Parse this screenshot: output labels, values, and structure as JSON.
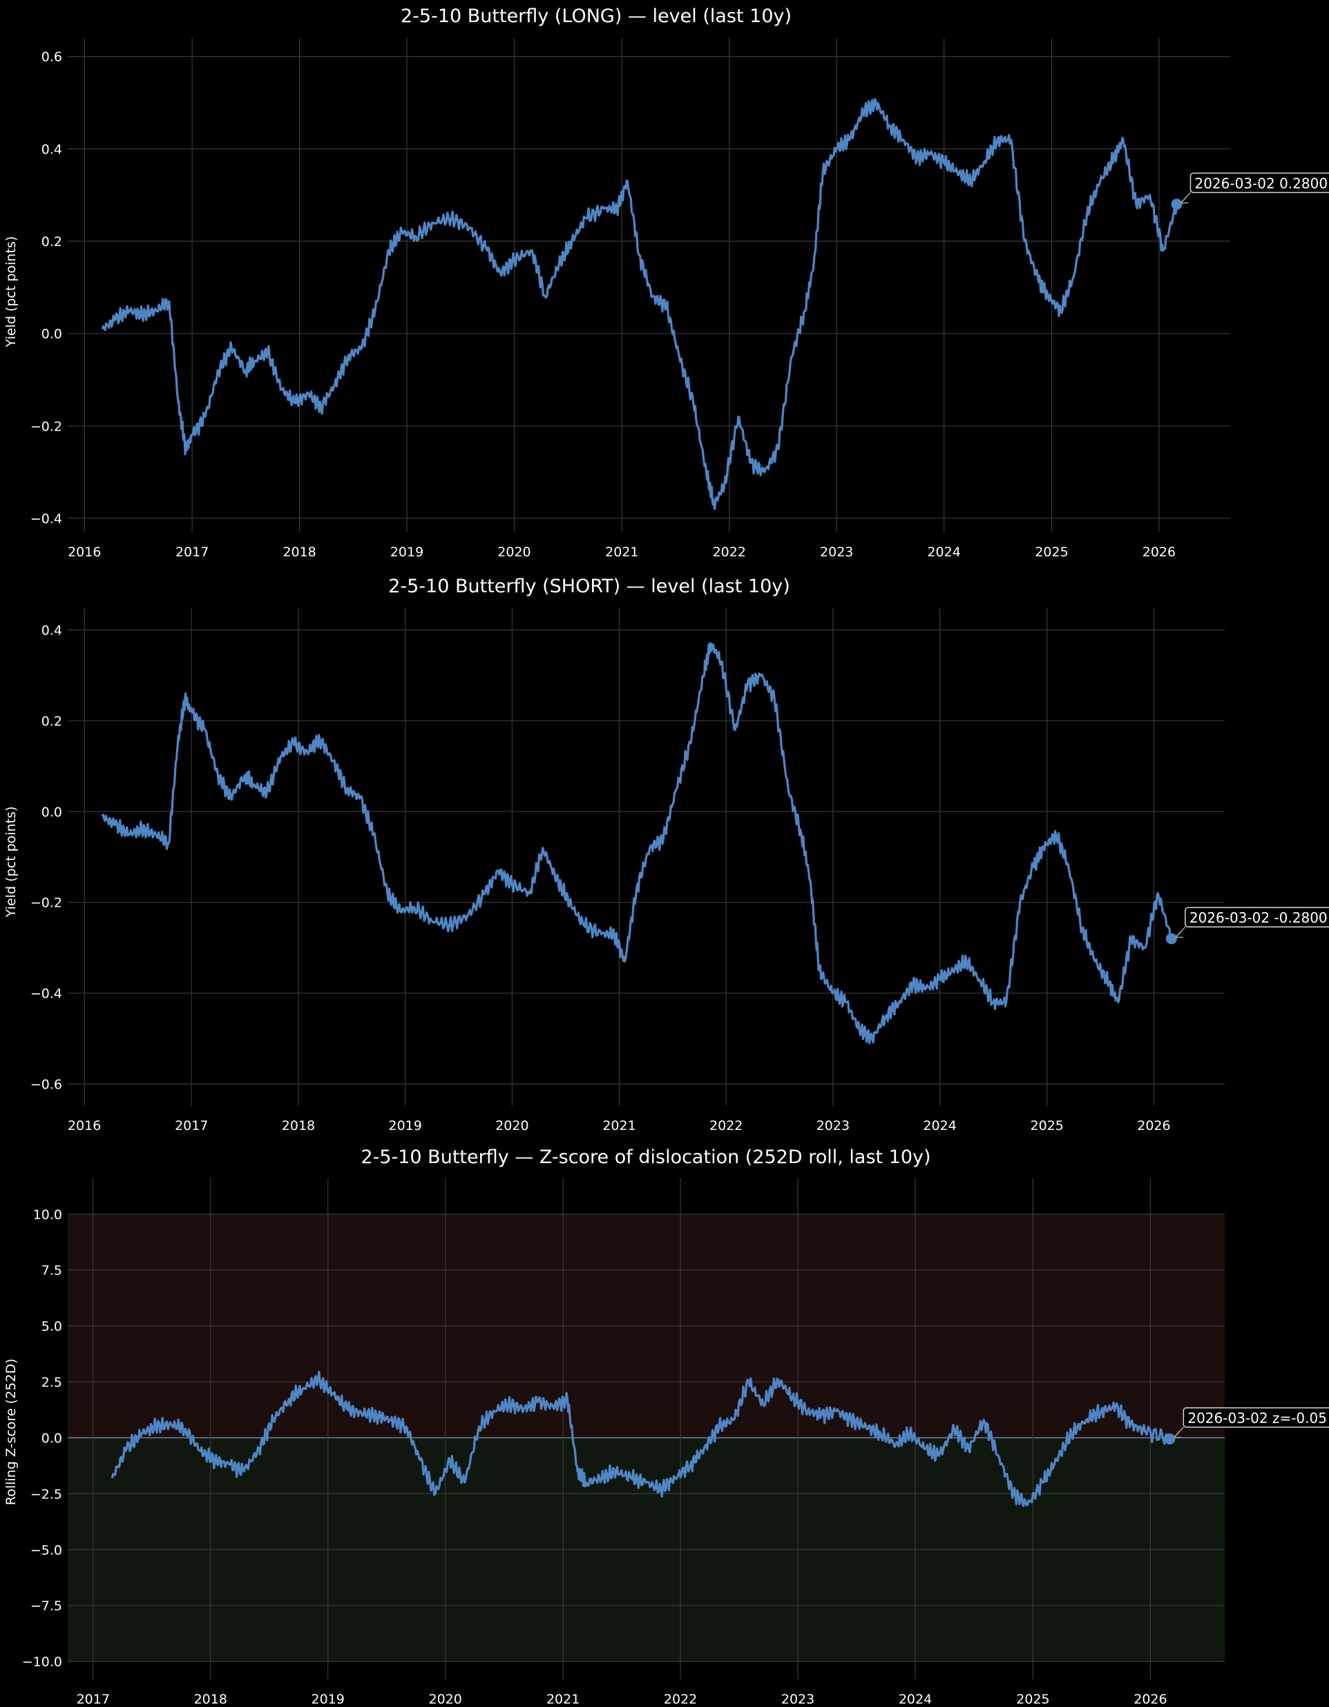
{
  "chart_data": [
    {
      "type": "line",
      "title": "2-5-10 Butterfly (LONG) — level (last 10y)",
      "xlabel": "",
      "ylabel": "Yield (pct points)",
      "xlim": [
        "2015-11-05",
        "2026-08-31"
      ],
      "ylim": [
        -0.43,
        0.64
      ],
      "xticks": [
        "2016",
        "2017",
        "2018",
        "2019",
        "2020",
        "2021",
        "2022",
        "2023",
        "2024",
        "2025",
        "2026"
      ],
      "yticks": [
        "−0.4",
        "−0.2",
        "0.0",
        "0.2",
        "0.4",
        "0.6"
      ],
      "ytick_values": [
        -0.4,
        -0.2,
        0.0,
        0.2,
        0.4,
        0.6
      ],
      "grid": true,
      "line_color": "#4f86c6",
      "series": [
        {
          "x": [
            "2016-03-02",
            "2016-04-15",
            "2016-06-01",
            "2016-07-15",
            "2016-09-01",
            "2016-10-15",
            "2016-11-15",
            "2016-12-10",
            "2017-01-01",
            "2017-02-15",
            "2017-04-01",
            "2017-05-15",
            "2017-07-01",
            "2017-08-01",
            "2017-09-15",
            "2017-11-01",
            "2017-12-15",
            "2018-02-01",
            "2018-03-15",
            "2018-05-01",
            "2018-06-15",
            "2018-08-01",
            "2018-09-15",
            "2018-11-01",
            "2018-12-15",
            "2019-02-01",
            "2019-04-01",
            "2019-06-01",
            "2019-08-01",
            "2019-10-01",
            "2019-11-15",
            "2020-01-01",
            "2020-03-01",
            "2020-04-15",
            "2020-06-01",
            "2020-07-15",
            "2020-09-01",
            "2020-11-01",
            "2020-12-15",
            "2021-01-20",
            "2021-03-01",
            "2021-04-15",
            "2021-06-01",
            "2021-07-15",
            "2021-09-01",
            "2021-10-15",
            "2021-11-10",
            "2021-12-15",
            "2022-02-01",
            "2022-03-15",
            "2022-05-01",
            "2022-06-15",
            "2022-08-01",
            "2022-09-15",
            "2022-10-15",
            "2022-11-15",
            "2023-01-01",
            "2023-02-15",
            "2023-04-01",
            "2023-05-15",
            "2023-07-01",
            "2023-08-15",
            "2023-10-01",
            "2023-11-15",
            "2024-01-01",
            "2024-02-15",
            "2024-04-01",
            "2024-05-15",
            "2024-07-01",
            "2024-08-15",
            "2024-10-01",
            "2024-11-15",
            "2024-12-20",
            "2025-02-01",
            "2025-03-15",
            "2025-05-01",
            "2025-06-15",
            "2025-08-01",
            "2025-09-01",
            "2025-10-15",
            "2025-12-01",
            "2026-01-15",
            "2026-03-02"
          ],
          "y": [
            0.01,
            0.03,
            0.05,
            0.04,
            0.05,
            0.07,
            -0.15,
            -0.25,
            -0.22,
            -0.18,
            -0.08,
            -0.03,
            -0.08,
            -0.06,
            -0.04,
            -0.12,
            -0.15,
            -0.13,
            -0.16,
            -0.11,
            -0.05,
            -0.03,
            0.05,
            0.18,
            0.22,
            0.21,
            0.24,
            0.25,
            0.23,
            0.18,
            0.13,
            0.16,
            0.18,
            0.08,
            0.15,
            0.2,
            0.25,
            0.27,
            0.27,
            0.33,
            0.17,
            0.08,
            0.06,
            -0.05,
            -0.15,
            -0.3,
            -0.37,
            -0.33,
            -0.18,
            -0.28,
            -0.3,
            -0.25,
            -0.05,
            0.05,
            0.15,
            0.35,
            0.4,
            0.42,
            0.48,
            0.5,
            0.45,
            0.42,
            0.38,
            0.39,
            0.37,
            0.35,
            0.33,
            0.37,
            0.42,
            0.42,
            0.2,
            0.12,
            0.08,
            0.05,
            0.12,
            0.26,
            0.33,
            0.38,
            0.42,
            0.28,
            0.3,
            0.18,
            0.28
          ]
        }
      ],
      "annotation": {
        "x": "2026-03-02",
        "y": 0.28,
        "text": "2026-03-02  0.2800"
      }
    },
    {
      "type": "line",
      "title": "2-5-10 Butterfly (SHORT) — level (last 10y)",
      "xlabel": "",
      "ylabel": "Yield (pct points)",
      "xlim": [
        "2015-11-05",
        "2026-08-31"
      ],
      "ylim": [
        -0.648,
        0.448
      ],
      "xticks": [
        "2016",
        "2017",
        "2018",
        "2019",
        "2020",
        "2021",
        "2022",
        "2023",
        "2024",
        "2025",
        "2026"
      ],
      "yticks": [
        "−0.6",
        "−0.4",
        "−0.2",
        "0.0",
        "0.2",
        "0.4"
      ],
      "ytick_values": [
        -0.6,
        -0.4,
        -0.2,
        0.0,
        0.2,
        0.4
      ],
      "grid": true,
      "line_color": "#4f86c6",
      "series": [
        {
          "x": [
            "2016-03-02",
            "2016-04-15",
            "2016-06-01",
            "2016-07-15",
            "2016-09-01",
            "2016-10-15",
            "2016-11-15",
            "2016-12-10",
            "2017-01-01",
            "2017-02-15",
            "2017-04-01",
            "2017-05-15",
            "2017-07-01",
            "2017-08-01",
            "2017-09-15",
            "2017-11-01",
            "2017-12-15",
            "2018-02-01",
            "2018-03-15",
            "2018-05-01",
            "2018-06-15",
            "2018-08-01",
            "2018-09-15",
            "2018-11-01",
            "2018-12-15",
            "2019-02-01",
            "2019-04-01",
            "2019-06-01",
            "2019-08-01",
            "2019-10-01",
            "2019-11-15",
            "2020-01-01",
            "2020-03-01",
            "2020-04-15",
            "2020-06-01",
            "2020-07-15",
            "2020-09-01",
            "2020-11-01",
            "2020-12-15",
            "2021-01-20",
            "2021-03-01",
            "2021-04-15",
            "2021-06-01",
            "2021-07-15",
            "2021-09-01",
            "2021-10-15",
            "2021-11-10",
            "2021-12-15",
            "2022-02-01",
            "2022-03-15",
            "2022-05-01",
            "2022-06-15",
            "2022-08-01",
            "2022-09-15",
            "2022-10-15",
            "2022-11-15",
            "2023-01-01",
            "2023-02-15",
            "2023-04-01",
            "2023-05-15",
            "2023-07-01",
            "2023-08-15",
            "2023-10-01",
            "2023-11-15",
            "2024-01-01",
            "2024-02-15",
            "2024-04-01",
            "2024-05-15",
            "2024-07-01",
            "2024-08-15",
            "2024-10-01",
            "2024-11-15",
            "2024-12-20",
            "2025-02-01",
            "2025-03-15",
            "2025-05-01",
            "2025-06-15",
            "2025-08-01",
            "2025-09-01",
            "2025-10-15",
            "2025-12-01",
            "2026-01-15",
            "2026-03-02"
          ],
          "y": [
            -0.01,
            -0.03,
            -0.05,
            -0.04,
            -0.05,
            -0.07,
            0.15,
            0.25,
            0.22,
            0.18,
            0.08,
            0.03,
            0.08,
            0.06,
            0.04,
            0.12,
            0.15,
            0.13,
            0.16,
            0.11,
            0.05,
            0.03,
            -0.05,
            -0.18,
            -0.22,
            -0.21,
            -0.24,
            -0.25,
            -0.23,
            -0.18,
            -0.13,
            -0.16,
            -0.18,
            -0.08,
            -0.15,
            -0.2,
            -0.25,
            -0.27,
            -0.27,
            -0.33,
            -0.17,
            -0.08,
            -0.06,
            0.05,
            0.15,
            0.3,
            0.37,
            0.33,
            0.18,
            0.28,
            0.3,
            0.25,
            0.05,
            -0.05,
            -0.15,
            -0.35,
            -0.4,
            -0.42,
            -0.48,
            -0.5,
            -0.45,
            -0.42,
            -0.38,
            -0.39,
            -0.37,
            -0.35,
            -0.33,
            -0.37,
            -0.42,
            -0.42,
            -0.2,
            -0.12,
            -0.08,
            -0.05,
            -0.12,
            -0.26,
            -0.33,
            -0.38,
            -0.42,
            -0.28,
            -0.3,
            -0.18,
            -0.28
          ]
        }
      ],
      "annotation": {
        "x": "2026-03-02",
        "y": -0.28,
        "text": "2026-03-02  -0.2800"
      }
    },
    {
      "type": "line",
      "title": "2-5-10 Butterfly — Z-score of dislocation (252D roll, last 10y)",
      "xlabel": "",
      "ylabel": "Rolling Z-score (252D)",
      "xlim": [
        "2016-10-14",
        "2026-08-20"
      ],
      "ylim": [
        -10.8,
        11.6
      ],
      "xticks": [
        "2017",
        "2018",
        "2019",
        "2020",
        "2021",
        "2022",
        "2023",
        "2024",
        "2025",
        "2026"
      ],
      "yticks": [
        "−10.0",
        "−7.5",
        "−5.0",
        "−2.5",
        "0.0",
        "2.5",
        "5.0",
        "7.5",
        "10.0"
      ],
      "ytick_values": [
        -10,
        -7.5,
        -5,
        -2.5,
        0,
        2.5,
        5,
        7.5,
        10
      ],
      "grid": true,
      "line_color": "#4f86c6",
      "bands": [
        {
          "from": 0,
          "to": 10,
          "color": "#1d0e0e"
        },
        {
          "from": -10,
          "to": 0,
          "color": "#0f170f"
        }
      ],
      "series": [
        {
          "x": [
            "2017-03-01",
            "2017-04-15",
            "2017-06-01",
            "2017-07-15",
            "2017-09-01",
            "2017-10-15",
            "2017-12-01",
            "2018-01-15",
            "2018-03-01",
            "2018-04-15",
            "2018-06-01",
            "2018-07-15",
            "2018-09-01",
            "2018-10-15",
            "2018-12-01",
            "2019-01-15",
            "2019-03-01",
            "2019-04-15",
            "2019-06-01",
            "2019-07-15",
            "2019-09-01",
            "2019-10-15",
            "2019-12-01",
            "2020-01-15",
            "2020-03-01",
            "2020-04-15",
            "2020-06-01",
            "2020-07-15",
            "2020-09-01",
            "2020-10-15",
            "2020-12-01",
            "2021-01-15",
            "2021-02-15",
            "2021-03-15",
            "2021-05-01",
            "2021-06-15",
            "2021-08-01",
            "2021-09-15",
            "2021-11-01",
            "2021-12-15",
            "2022-02-01",
            "2022-03-15",
            "2022-05-01",
            "2022-06-15",
            "2022-08-01",
            "2022-09-15",
            "2022-11-01",
            "2022-12-15",
            "2023-02-01",
            "2023-03-15",
            "2023-05-01",
            "2023-06-15",
            "2023-08-01",
            "2023-09-15",
            "2023-11-01",
            "2023-12-15",
            "2024-02-01",
            "2024-03-15",
            "2024-05-01",
            "2024-06-15",
            "2024-08-01",
            "2024-09-15",
            "2024-11-01",
            "2024-12-15",
            "2025-02-01",
            "2025-03-15",
            "2025-05-01",
            "2025-06-15",
            "2025-08-01",
            "2025-09-15",
            "2025-11-01",
            "2025-12-15",
            "2026-03-02"
          ],
          "y": [
            -1.8,
            -0.5,
            0.2,
            0.5,
            0.6,
            0.4,
            -0.6,
            -1.0,
            -1.2,
            -1.5,
            -0.5,
            0.8,
            1.7,
            2.2,
            2.6,
            2.0,
            1.3,
            1.1,
            1.0,
            0.8,
            0.5,
            -1.0,
            -2.5,
            -1.0,
            -2.0,
            0.5,
            1.2,
            1.5,
            1.3,
            1.6,
            1.4,
            1.7,
            -1.5,
            -2.0,
            -1.8,
            -1.5,
            -1.8,
            -2.0,
            -2.3,
            -1.8,
            -1.2,
            -0.5,
            0.5,
            0.8,
            2.5,
            1.5,
            2.6,
            1.8,
            1.2,
            1.0,
            1.2,
            0.8,
            0.5,
            0.2,
            -0.3,
            0.2,
            -0.5,
            -0.8,
            0.4,
            -0.5,
            0.8,
            -0.8,
            -2.5,
            -3.0,
            -2.0,
            -1.0,
            0.2,
            0.8,
            1.2,
            1.4,
            0.6,
            0.3,
            -0.05
          ]
        }
      ],
      "annotation": {
        "x": "2026-03-02",
        "y": -0.05,
        "text": "2026-03-02  z=-0.05"
      }
    }
  ]
}
